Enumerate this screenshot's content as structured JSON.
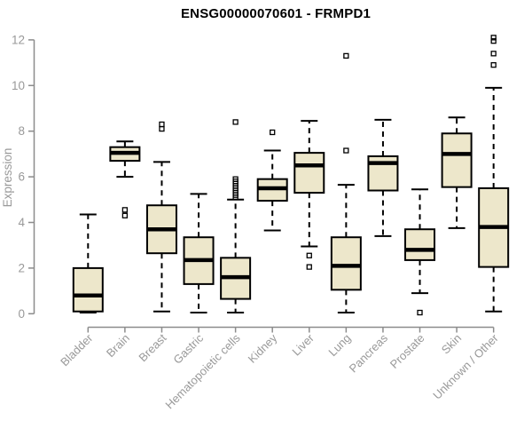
{
  "chart_data": {
    "type": "boxplot",
    "title": "ENSG00000070601 - FRMPD1",
    "ylabel": "Expression",
    "xlabel": "",
    "ylim": [
      0,
      12
    ],
    "yticks": [
      0,
      2,
      4,
      6,
      8,
      10,
      12
    ],
    "grid": false,
    "legend": "none",
    "categories": [
      "Bladder",
      "Brain",
      "Breast",
      "Gastric",
      "Hematopoietic cells",
      "Kidney",
      "Liver",
      "Lung",
      "Pancreas",
      "Prostate",
      "Skin",
      "Unknown / Other"
    ],
    "series": [
      {
        "name": "Bladder",
        "min": 0.05,
        "q1": 0.1,
        "median": 0.8,
        "q3": 2.0,
        "max": 4.35,
        "outliers": []
      },
      {
        "name": "Brain",
        "min": 6.0,
        "q1": 6.7,
        "median": 7.05,
        "q3": 7.3,
        "max": 7.55,
        "outliers": [
          4.3,
          4.55
        ]
      },
      {
        "name": "Breast",
        "min": 0.1,
        "q1": 2.65,
        "median": 3.7,
        "q3": 4.75,
        "max": 6.65,
        "outliers": [
          8.1,
          8.3
        ]
      },
      {
        "name": "Gastric",
        "min": 0.05,
        "q1": 1.3,
        "median": 2.35,
        "q3": 3.35,
        "max": 5.25,
        "outliers": []
      },
      {
        "name": "Hematopoietic cells",
        "min": 0.05,
        "q1": 0.65,
        "median": 1.6,
        "q3": 2.45,
        "max": 5.0,
        "outliers": [
          5.1,
          5.2,
          5.3,
          5.4,
          5.5,
          5.6,
          5.7,
          5.8,
          5.9,
          8.4
        ]
      },
      {
        "name": "Kidney",
        "min": 3.65,
        "q1": 4.95,
        "median": 5.5,
        "q3": 5.9,
        "max": 7.15,
        "outliers": [
          7.95
        ]
      },
      {
        "name": "Liver",
        "min": 2.95,
        "q1": 5.3,
        "median": 6.5,
        "q3": 7.05,
        "max": 8.45,
        "outliers": [
          2.05,
          2.55
        ]
      },
      {
        "name": "Lung",
        "min": 0.05,
        "q1": 1.05,
        "median": 2.1,
        "q3": 3.35,
        "max": 5.65,
        "outliers": [
          7.15,
          11.3
        ]
      },
      {
        "name": "Pancreas",
        "min": 3.4,
        "q1": 5.4,
        "median": 6.6,
        "q3": 6.9,
        "max": 8.5,
        "outliers": []
      },
      {
        "name": "Prostate",
        "min": 0.9,
        "q1": 2.35,
        "median": 2.8,
        "q3": 3.7,
        "max": 5.45,
        "outliers": [
          0.05
        ]
      },
      {
        "name": "Skin",
        "min": 3.75,
        "q1": 5.55,
        "median": 7.0,
        "q3": 7.9,
        "max": 8.6,
        "outliers": []
      },
      {
        "name": "Unknown / Other",
        "min": 0.1,
        "q1": 2.05,
        "median": 3.8,
        "q3": 5.5,
        "max": 9.9,
        "outliers": [
          10.9,
          11.4,
          11.95,
          12.1
        ]
      }
    ],
    "colors": {
      "box_fill": "#ede7cb",
      "box_border": "#000000",
      "median_line": "#000000",
      "whisker": "#000000",
      "outlier": "#000000",
      "axis_line": "#8c8c8c",
      "tick_label": "#999999",
      "axis_label": "#999999",
      "title_color": "#000000",
      "background": "#ffffff"
    }
  }
}
